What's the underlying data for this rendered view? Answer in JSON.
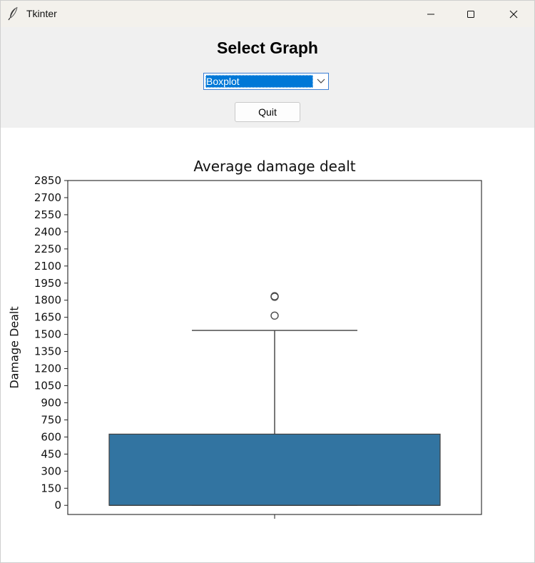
{
  "window": {
    "title": "Tkinter"
  },
  "controls": {
    "heading": "Select Graph",
    "graph_select": {
      "value": "Boxplot"
    },
    "quit_label": "Quit"
  },
  "chart_data": {
    "type": "boxplot",
    "title": "Average damage dealt",
    "xlabel": "",
    "ylabel": "Damage Dealt",
    "ylim": [
      -80,
      2850
    ],
    "yticks": [
      0,
      150,
      300,
      450,
      600,
      750,
      900,
      1050,
      1200,
      1350,
      1500,
      1650,
      1800,
      1950,
      2100,
      2250,
      2400,
      2550,
      2700,
      2850
    ],
    "box": {
      "min": 0,
      "q1": 0,
      "median": 0,
      "q3": 625,
      "whisker_low": 0,
      "whisker_high": 1535
    },
    "outliers": [
      1665,
      1830,
      1835
    ],
    "color": "#3274a1",
    "grid": false
  }
}
